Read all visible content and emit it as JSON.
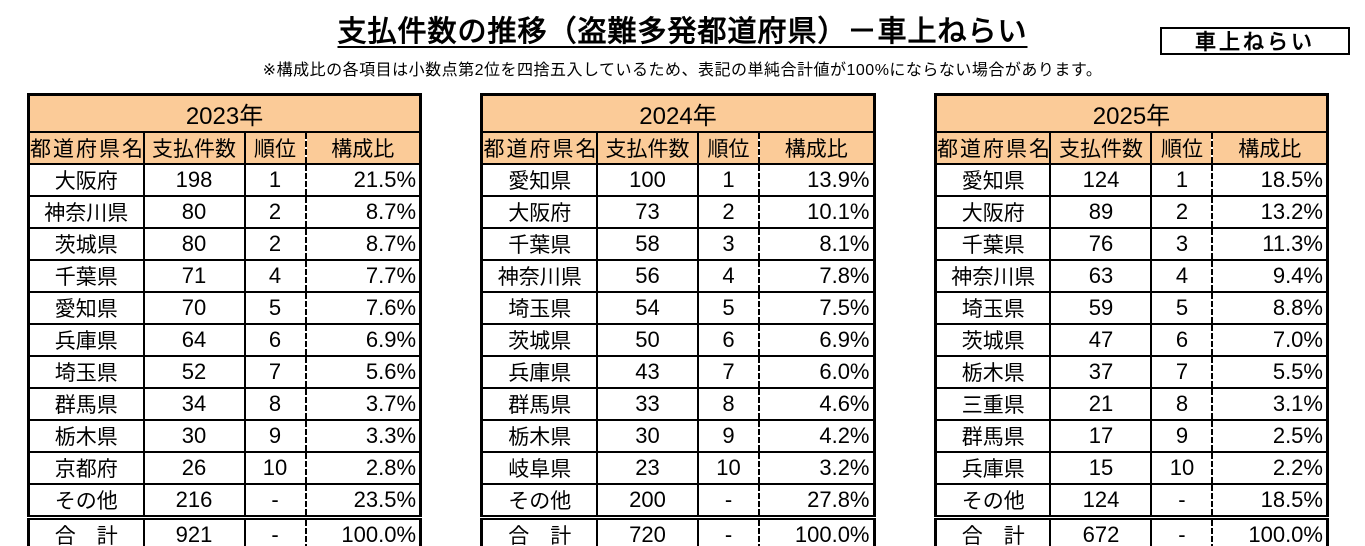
{
  "header": {
    "title": "支払件数の推移（盗難多発都道府県）－車上ねらい",
    "tag": "車上ねらい",
    "note": "※構成比の各項目は小数点第2位を四捨五入しているため、表記の単純合計値が100%にならない場合があります。"
  },
  "columns": [
    "都道府県名",
    "支払件数",
    "順位",
    "構成比"
  ],
  "colors": {
    "header_bg": "#FBCB98",
    "border": "#000000"
  },
  "tables": [
    {
      "year": "2023年",
      "rows": [
        [
          "大阪府",
          "198",
          "1",
          "21.5%"
        ],
        [
          "神奈川県",
          "80",
          "2",
          "8.7%"
        ],
        [
          "茨城県",
          "80",
          "2",
          "8.7%"
        ],
        [
          "千葉県",
          "71",
          "4",
          "7.7%"
        ],
        [
          "愛知県",
          "70",
          "5",
          "7.6%"
        ],
        [
          "兵庫県",
          "64",
          "6",
          "6.9%"
        ],
        [
          "埼玉県",
          "52",
          "7",
          "5.6%"
        ],
        [
          "群馬県",
          "34",
          "8",
          "3.7%"
        ],
        [
          "栃木県",
          "30",
          "9",
          "3.3%"
        ],
        [
          "京都府",
          "26",
          "10",
          "2.8%"
        ],
        [
          "その他",
          "216",
          "-",
          "23.5%"
        ]
      ],
      "total_row": [
        "合　計",
        "921",
        "-",
        "100.0%"
      ]
    },
    {
      "year": "2024年",
      "rows": [
        [
          "愛知県",
          "100",
          "1",
          "13.9%"
        ],
        [
          "大阪府",
          "73",
          "2",
          "10.1%"
        ],
        [
          "千葉県",
          "58",
          "3",
          "8.1%"
        ],
        [
          "神奈川県",
          "56",
          "4",
          "7.8%"
        ],
        [
          "埼玉県",
          "54",
          "5",
          "7.5%"
        ],
        [
          "茨城県",
          "50",
          "6",
          "6.9%"
        ],
        [
          "兵庫県",
          "43",
          "7",
          "6.0%"
        ],
        [
          "群馬県",
          "33",
          "8",
          "4.6%"
        ],
        [
          "栃木県",
          "30",
          "9",
          "4.2%"
        ],
        [
          "岐阜県",
          "23",
          "10",
          "3.2%"
        ],
        [
          "その他",
          "200",
          "-",
          "27.8%"
        ]
      ],
      "total_row": [
        "合　計",
        "720",
        "-",
        "100.0%"
      ]
    },
    {
      "year": "2025年",
      "rows": [
        [
          "愛知県",
          "124",
          "1",
          "18.5%"
        ],
        [
          "大阪府",
          "89",
          "2",
          "13.2%"
        ],
        [
          "千葉県",
          "76",
          "3",
          "11.3%"
        ],
        [
          "神奈川県",
          "63",
          "4",
          "9.4%"
        ],
        [
          "埼玉県",
          "59",
          "5",
          "8.8%"
        ],
        [
          "茨城県",
          "47",
          "6",
          "7.0%"
        ],
        [
          "栃木県",
          "37",
          "7",
          "5.5%"
        ],
        [
          "三重県",
          "21",
          "8",
          "3.1%"
        ],
        [
          "群馬県",
          "17",
          "9",
          "2.5%"
        ],
        [
          "兵庫県",
          "15",
          "10",
          "2.2%"
        ],
        [
          "その他",
          "124",
          "-",
          "18.5%"
        ]
      ],
      "total_row": [
        "合　計",
        "672",
        "-",
        "100.0%"
      ]
    }
  ]
}
